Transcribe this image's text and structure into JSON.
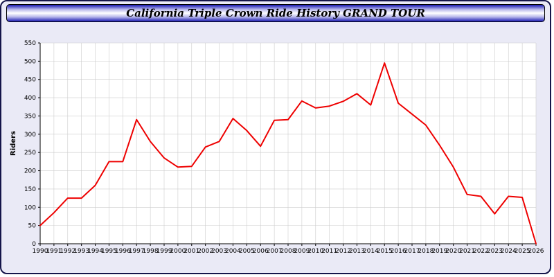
{
  "page": {
    "title_bar": "California Triple Crown Ride History GRAND TOUR"
  },
  "chart_data": {
    "type": "line",
    "title": "California Triple Crown Ride History GRAND TOUR",
    "ylabel": "Riders",
    "xlabel": "",
    "ylim": [
      0,
      550
    ],
    "ytick_step": 50,
    "grid": true,
    "legend": "none",
    "plot_bg": "#ffffff",
    "page_bg": "#eaeaf6",
    "grid_color": "#cccccc",
    "axis_color": "#000000",
    "x": [
      1990,
      1991,
      1992,
      1993,
      1994,
      1995,
      1996,
      1997,
      1998,
      1999,
      2000,
      2001,
      2002,
      2003,
      2004,
      2005,
      2006,
      2007,
      2008,
      2009,
      2010,
      2011,
      2012,
      2013,
      2014,
      2015,
      2016,
      2017,
      2018,
      2019,
      2020,
      2021,
      2022,
      2023,
      2024,
      2025,
      2026
    ],
    "series": [
      {
        "name": "Riders",
        "color": "#ee0000",
        "values": [
          50,
          85,
          125,
          125,
          160,
          225,
          225,
          340,
          280,
          235,
          210,
          212,
          265,
          280,
          343,
          310,
          267,
          338,
          340,
          391,
          372,
          377,
          390,
          411,
          380,
          495,
          385,
          355,
          325,
          270,
          210,
          135,
          130,
          82,
          130,
          127,
          0
        ]
      }
    ]
  }
}
